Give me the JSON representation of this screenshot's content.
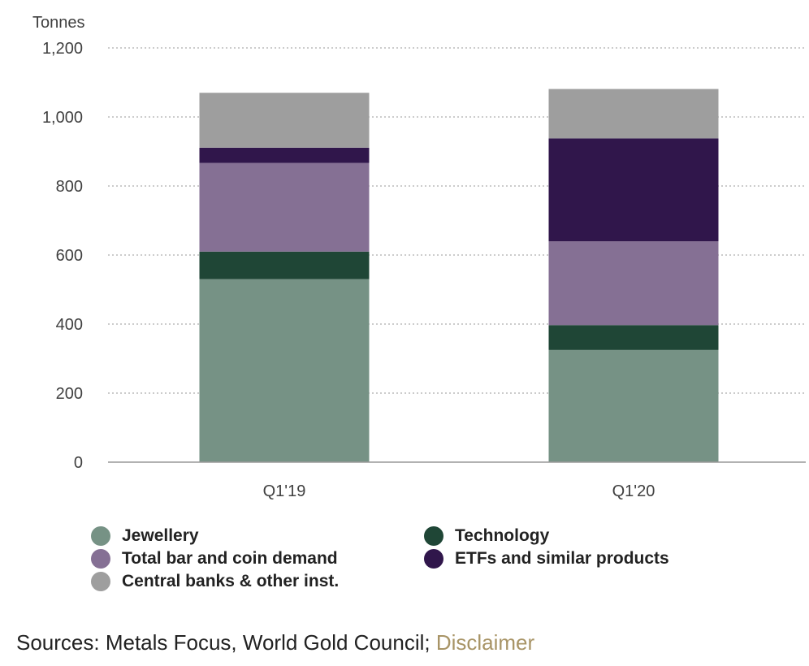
{
  "chart_data": {
    "type": "stacked-bar",
    "ylabel": "Tonnes",
    "ylim": [
      0,
      1200
    ],
    "yticks": [
      "0",
      "200",
      "400",
      "600",
      "800",
      "1,000",
      "1,200"
    ],
    "ytick_values": [
      0,
      200,
      400,
      600,
      800,
      1000,
      1200
    ],
    "grid": true,
    "categories": [
      "Q1'19",
      "Q1'20"
    ],
    "series": [
      {
        "name": "Jewellery",
        "color": "#769285",
        "values": [
          530,
          325
        ]
      },
      {
        "name": "Technology",
        "color": "#1f4636",
        "values": [
          80,
          72
        ]
      },
      {
        "name": "Total bar and coin demand",
        "color": "#857094",
        "values": [
          257,
          243
        ]
      },
      {
        "name": "ETFs and similar products",
        "color": "#30164b",
        "values": [
          44,
          298
        ]
      },
      {
        "name": "Central banks & other inst.",
        "color": "#9e9e9e",
        "values": [
          159,
          143
        ]
      }
    ],
    "legend_position": "bottom"
  },
  "legend": {
    "items": [
      {
        "label": "Jewellery",
        "color": "#769285"
      },
      {
        "label": "Technology",
        "color": "#1f4636"
      },
      {
        "label": "Total bar and coin demand",
        "color": "#857094"
      },
      {
        "label": "ETFs and similar products",
        "color": "#30164b"
      },
      {
        "label": "Central banks & other inst.",
        "color": "#9e9e9e"
      }
    ]
  },
  "footer": {
    "sources_text": "Sources: Metals Focus, World Gold Council; ",
    "disclaimer_link": "Disclaimer"
  }
}
